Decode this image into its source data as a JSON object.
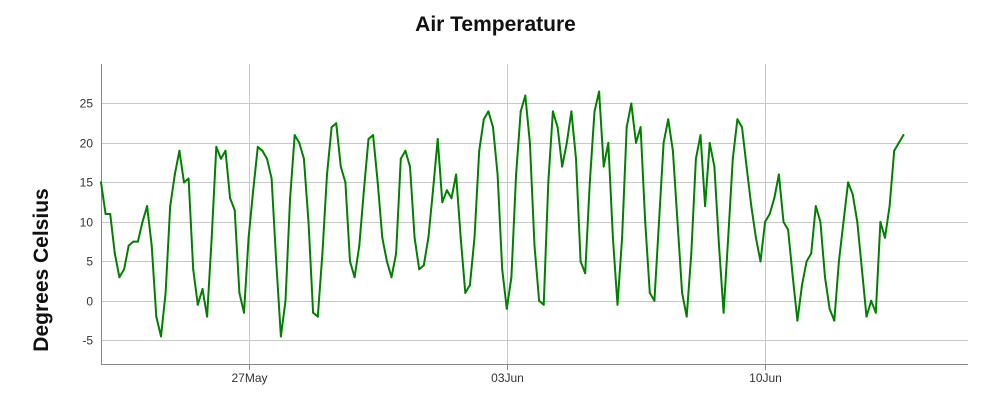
{
  "chart_data": {
    "type": "line",
    "title": "Air Temperature",
    "ylabel": "Degrees Celsius",
    "xlabel": "",
    "ylim": [
      -8,
      30
    ],
    "yticks": [
      -5,
      0,
      5,
      10,
      15,
      20,
      25
    ],
    "xlim": [
      "2017-05-23T00:00",
      "2017-06-15T12:00"
    ],
    "xticks": [
      {
        "date": "2017-05-27",
        "label": "27May"
      },
      {
        "date": "2017-06-03",
        "label": "03Jun"
      },
      {
        "date": "2017-06-10",
        "label": "10Jun"
      }
    ],
    "grid": true,
    "legend": "none",
    "series": [
      {
        "color": "#008000",
        "points": [
          {
            "t": "2017-05-23T00:00",
            "v": 15
          },
          {
            "t": "2017-05-23T03:00",
            "v": 11
          },
          {
            "t": "2017-05-23T06:00",
            "v": 11
          },
          {
            "t": "2017-05-23T09:00",
            "v": 6
          },
          {
            "t": "2017-05-23T12:00",
            "v": 3
          },
          {
            "t": "2017-05-23T15:00",
            "v": 4
          },
          {
            "t": "2017-05-23T18:00",
            "v": 7
          },
          {
            "t": "2017-05-23T21:00",
            "v": 7.5
          },
          {
            "t": "2017-05-24T00:00",
            "v": 7.5
          },
          {
            "t": "2017-05-24T03:00",
            "v": 10
          },
          {
            "t": "2017-05-24T06:00",
            "v": 12
          },
          {
            "t": "2017-05-24T09:00",
            "v": 7
          },
          {
            "t": "2017-05-24T12:00",
            "v": -2
          },
          {
            "t": "2017-05-24T15:00",
            "v": -4.5
          },
          {
            "t": "2017-05-24T18:00",
            "v": 1
          },
          {
            "t": "2017-05-24T21:00",
            "v": 12
          },
          {
            "t": "2017-05-25T00:00",
            "v": 16
          },
          {
            "t": "2017-05-25T03:00",
            "v": 19
          },
          {
            "t": "2017-05-25T06:00",
            "v": 15
          },
          {
            "t": "2017-05-25T09:00",
            "v": 15.5
          },
          {
            "t": "2017-05-25T12:00",
            "v": 4
          },
          {
            "t": "2017-05-25T15:00",
            "v": -0.5
          },
          {
            "t": "2017-05-25T18:00",
            "v": 1.5
          },
          {
            "t": "2017-05-25T21:00",
            "v": -2
          },
          {
            "t": "2017-05-26T00:00",
            "v": 8
          },
          {
            "t": "2017-05-26T03:00",
            "v": 19.5
          },
          {
            "t": "2017-05-26T06:00",
            "v": 18
          },
          {
            "t": "2017-05-26T09:00",
            "v": 19
          },
          {
            "t": "2017-05-26T12:00",
            "v": 13
          },
          {
            "t": "2017-05-26T15:00",
            "v": 11.5
          },
          {
            "t": "2017-05-26T18:00",
            "v": 1
          },
          {
            "t": "2017-05-26T21:00",
            "v": -1.5
          },
          {
            "t": "2017-05-27T00:00",
            "v": 8
          },
          {
            "t": "2017-05-27T03:00",
            "v": 14
          },
          {
            "t": "2017-05-27T06:00",
            "v": 19.5
          },
          {
            "t": "2017-05-27T09:00",
            "v": 19
          },
          {
            "t": "2017-05-27T12:00",
            "v": 18
          },
          {
            "t": "2017-05-27T15:00",
            "v": 15.5
          },
          {
            "t": "2017-05-27T18:00",
            "v": 5
          },
          {
            "t": "2017-05-27T21:00",
            "v": -4.5
          },
          {
            "t": "2017-05-28T00:00",
            "v": 0
          },
          {
            "t": "2017-05-28T03:00",
            "v": 13
          },
          {
            "t": "2017-05-28T06:00",
            "v": 21
          },
          {
            "t": "2017-05-28T09:00",
            "v": 20
          },
          {
            "t": "2017-05-28T12:00",
            "v": 18
          },
          {
            "t": "2017-05-28T15:00",
            "v": 10
          },
          {
            "t": "2017-05-28T18:00",
            "v": -1.5
          },
          {
            "t": "2017-05-28T21:00",
            "v": -2
          },
          {
            "t": "2017-05-29T00:00",
            "v": 6
          },
          {
            "t": "2017-05-29T03:00",
            "v": 16
          },
          {
            "t": "2017-05-29T06:00",
            "v": 22
          },
          {
            "t": "2017-05-29T09:00",
            "v": 22.5
          },
          {
            "t": "2017-05-29T12:00",
            "v": 17
          },
          {
            "t": "2017-05-29T15:00",
            "v": 15
          },
          {
            "t": "2017-05-29T18:00",
            "v": 5
          },
          {
            "t": "2017-05-29T21:00",
            "v": 3
          },
          {
            "t": "2017-05-30T00:00",
            "v": 7
          },
          {
            "t": "2017-05-30T03:00",
            "v": 14
          },
          {
            "t": "2017-05-30T06:00",
            "v": 20.5
          },
          {
            "t": "2017-05-30T09:00",
            "v": 21
          },
          {
            "t": "2017-05-30T12:00",
            "v": 15
          },
          {
            "t": "2017-05-30T15:00",
            "v": 8
          },
          {
            "t": "2017-05-30T18:00",
            "v": 5
          },
          {
            "t": "2017-05-30T21:00",
            "v": 3
          },
          {
            "t": "2017-05-31T00:00",
            "v": 6
          },
          {
            "t": "2017-05-31T03:00",
            "v": 18
          },
          {
            "t": "2017-05-31T06:00",
            "v": 19
          },
          {
            "t": "2017-05-31T09:00",
            "v": 17
          },
          {
            "t": "2017-05-31T12:00",
            "v": 8
          },
          {
            "t": "2017-05-31T15:00",
            "v": 4
          },
          {
            "t": "2017-05-31T18:00",
            "v": 4.5
          },
          {
            "t": "2017-05-31T21:00",
            "v": 8
          },
          {
            "t": "2017-06-01T00:00",
            "v": 14
          },
          {
            "t": "2017-06-01T03:00",
            "v": 20.5
          },
          {
            "t": "2017-06-01T06:00",
            "v": 12.5
          },
          {
            "t": "2017-06-01T09:00",
            "v": 14
          },
          {
            "t": "2017-06-01T12:00",
            "v": 13
          },
          {
            "t": "2017-06-01T15:00",
            "v": 16
          },
          {
            "t": "2017-06-01T18:00",
            "v": 8
          },
          {
            "t": "2017-06-01T21:00",
            "v": 1
          },
          {
            "t": "2017-06-02T00:00",
            "v": 2
          },
          {
            "t": "2017-06-02T03:00",
            "v": 8
          },
          {
            "t": "2017-06-02T06:00",
            "v": 19
          },
          {
            "t": "2017-06-02T09:00",
            "v": 23
          },
          {
            "t": "2017-06-02T12:00",
            "v": 24
          },
          {
            "t": "2017-06-02T15:00",
            "v": 22
          },
          {
            "t": "2017-06-02T18:00",
            "v": 16
          },
          {
            "t": "2017-06-02T21:00",
            "v": 4
          },
          {
            "t": "2017-06-03T00:00",
            "v": -1
          },
          {
            "t": "2017-06-03T03:00",
            "v": 3
          },
          {
            "t": "2017-06-03T06:00",
            "v": 16
          },
          {
            "t": "2017-06-03T09:00",
            "v": 24
          },
          {
            "t": "2017-06-03T12:00",
            "v": 26
          },
          {
            "t": "2017-06-03T15:00",
            "v": 20
          },
          {
            "t": "2017-06-03T18:00",
            "v": 7
          },
          {
            "t": "2017-06-03T21:00",
            "v": 0
          },
          {
            "t": "2017-06-04T00:00",
            "v": -0.5
          },
          {
            "t": "2017-06-04T03:00",
            "v": 15
          },
          {
            "t": "2017-06-04T06:00",
            "v": 24
          },
          {
            "t": "2017-06-04T09:00",
            "v": 22
          },
          {
            "t": "2017-06-04T12:00",
            "v": 17
          },
          {
            "t": "2017-06-04T15:00",
            "v": 20
          },
          {
            "t": "2017-06-04T18:00",
            "v": 24
          },
          {
            "t": "2017-06-04T21:00",
            "v": 18
          },
          {
            "t": "2017-06-05T00:00",
            "v": 5
          },
          {
            "t": "2017-06-05T03:00",
            "v": 3.5
          },
          {
            "t": "2017-06-05T06:00",
            "v": 15
          },
          {
            "t": "2017-06-05T09:00",
            "v": 24
          },
          {
            "t": "2017-06-05T12:00",
            "v": 26.5
          },
          {
            "t": "2017-06-05T15:00",
            "v": 17
          },
          {
            "t": "2017-06-05T18:00",
            "v": 20
          },
          {
            "t": "2017-06-05T21:00",
            "v": 8
          },
          {
            "t": "2017-06-06T00:00",
            "v": -0.5
          },
          {
            "t": "2017-06-06T03:00",
            "v": 8
          },
          {
            "t": "2017-06-06T06:00",
            "v": 22
          },
          {
            "t": "2017-06-06T09:00",
            "v": 25
          },
          {
            "t": "2017-06-06T12:00",
            "v": 20
          },
          {
            "t": "2017-06-06T15:00",
            "v": 22
          },
          {
            "t": "2017-06-06T18:00",
            "v": 10
          },
          {
            "t": "2017-06-06T21:00",
            "v": 1
          },
          {
            "t": "2017-06-07T00:00",
            "v": 0
          },
          {
            "t": "2017-06-07T03:00",
            "v": 10
          },
          {
            "t": "2017-06-07T06:00",
            "v": 20
          },
          {
            "t": "2017-06-07T09:00",
            "v": 23
          },
          {
            "t": "2017-06-07T12:00",
            "v": 19
          },
          {
            "t": "2017-06-07T15:00",
            "v": 10
          },
          {
            "t": "2017-06-07T18:00",
            "v": 1
          },
          {
            "t": "2017-06-07T21:00",
            "v": -2
          },
          {
            "t": "2017-06-08T00:00",
            "v": 6
          },
          {
            "t": "2017-06-08T03:00",
            "v": 18
          },
          {
            "t": "2017-06-08T06:00",
            "v": 21
          },
          {
            "t": "2017-06-08T09:00",
            "v": 12
          },
          {
            "t": "2017-06-08T12:00",
            "v": 20
          },
          {
            "t": "2017-06-08T15:00",
            "v": 17
          },
          {
            "t": "2017-06-08T18:00",
            "v": 7
          },
          {
            "t": "2017-06-08T21:00",
            "v": -1.5
          },
          {
            "t": "2017-06-09T00:00",
            "v": 8
          },
          {
            "t": "2017-06-09T03:00",
            "v": 18
          },
          {
            "t": "2017-06-09T06:00",
            "v": 23
          },
          {
            "t": "2017-06-09T09:00",
            "v": 22
          },
          {
            "t": "2017-06-09T12:00",
            "v": 17
          },
          {
            "t": "2017-06-09T15:00",
            "v": 12
          },
          {
            "t": "2017-06-09T18:00",
            "v": 8
          },
          {
            "t": "2017-06-09T21:00",
            "v": 5
          },
          {
            "t": "2017-06-10T00:00",
            "v": 10
          },
          {
            "t": "2017-06-10T03:00",
            "v": 11
          },
          {
            "t": "2017-06-10T06:00",
            "v": 13
          },
          {
            "t": "2017-06-10T09:00",
            "v": 16
          },
          {
            "t": "2017-06-10T12:00",
            "v": 10
          },
          {
            "t": "2017-06-10T15:00",
            "v": 9
          },
          {
            "t": "2017-06-10T18:00",
            "v": 3
          },
          {
            "t": "2017-06-10T21:00",
            "v": -2.5
          },
          {
            "t": "2017-06-11T00:00",
            "v": 2
          },
          {
            "t": "2017-06-11T03:00",
            "v": 5
          },
          {
            "t": "2017-06-11T06:00",
            "v": 6
          },
          {
            "t": "2017-06-11T09:00",
            "v": 12
          },
          {
            "t": "2017-06-11T12:00",
            "v": 10
          },
          {
            "t": "2017-06-11T15:00",
            "v": 3
          },
          {
            "t": "2017-06-11T18:00",
            "v": -1
          },
          {
            "t": "2017-06-11T21:00",
            "v": -2.5
          },
          {
            "t": "2017-06-12T00:00",
            "v": 5
          },
          {
            "t": "2017-06-12T03:00",
            "v": 10
          },
          {
            "t": "2017-06-12T06:00",
            "v": 15
          },
          {
            "t": "2017-06-12T09:00",
            "v": 13.5
          },
          {
            "t": "2017-06-12T12:00",
            "v": 10
          },
          {
            "t": "2017-06-12T15:00",
            "v": 4
          },
          {
            "t": "2017-06-12T18:00",
            "v": -2
          },
          {
            "t": "2017-06-12T21:00",
            "v": 0
          },
          {
            "t": "2017-06-13T00:00",
            "v": -1.5
          },
          {
            "t": "2017-06-13T03:00",
            "v": 10
          },
          {
            "t": "2017-06-13T06:00",
            "v": 8
          },
          {
            "t": "2017-06-13T09:00",
            "v": 12
          },
          {
            "t": "2017-06-13T12:00",
            "v": 19
          },
          {
            "t": "2017-06-13T15:00",
            "v": 20
          },
          {
            "t": "2017-06-13T18:00",
            "v": 21
          }
        ]
      }
    ]
  }
}
